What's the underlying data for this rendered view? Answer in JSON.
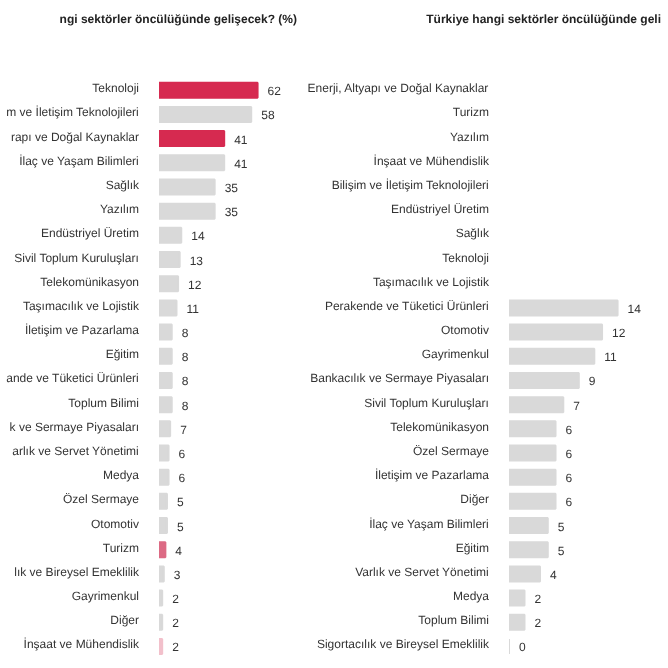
{
  "chart_data": [
    {
      "type": "bar",
      "orientation": "horizontal",
      "title": "ngi sektörler öncülüğünde gelişecek? (%)",
      "data_labels": true,
      "grid": false,
      "tick_labels": "y",
      "categories": [
        "Teknoloji",
        "m ve İletişim Teknolojileri",
        "rapı ve Doğal Kaynaklar",
        "İlaç ve Yaşam Bilimleri",
        "Sağlık",
        "Yazılım",
        "Endüstriyel Üretim",
        "Sivil Toplum Kuruluşları",
        "Telekomünikasyon",
        "Taşımacılık ve Lojistik",
        "İletişim ve Pazarlama",
        "Eğitim",
        "ande ve Tüketici Ürünleri",
        "Toplum Bilimi",
        "k ve Sermaye Piyasaları",
        "arlık ve Servet Yönetimi",
        "Medya",
        "Özel Sermaye",
        "Otomotiv",
        "Turizm",
        "lık ve Bireysel Emeklilik",
        "Gayrimenkul",
        "Diğer",
        "İnşaat ve Mühendislik"
      ],
      "values": [
        62,
        58,
        41,
        41,
        35,
        35,
        14,
        13,
        12,
        11,
        8,
        8,
        8,
        8,
        7,
        6,
        6,
        5,
        5,
        4,
        3,
        2,
        2,
        2
      ],
      "colors": [
        "#d62a50",
        "#d9d9d9",
        "#d62a50",
        "#d9d9d9",
        "#d9d9d9",
        "#d9d9d9",
        "#d9d9d9",
        "#d9d9d9",
        "#d9d9d9",
        "#d9d9d9",
        "#d9d9d9",
        "#d9d9d9",
        "#d9d9d9",
        "#d9d9d9",
        "#d9d9d9",
        "#d9d9d9",
        "#d9d9d9",
        "#d9d9d9",
        "#d9d9d9",
        "#dc6a84",
        "#d9d9d9",
        "#d9d9d9",
        "#d9d9d9",
        "#f2c0cb"
      ]
    },
    {
      "type": "bar",
      "orientation": "horizontal",
      "title": "Türkiye hangi sektörler öncülüğünde geli",
      "data_labels": true,
      "grid": false,
      "tick_labels": "y",
      "categories": [
        "Enerji, Altyapı ve Doğal Kaynaklar",
        "Turizm",
        "Yazılım",
        "İnşaat ve Mühendislik",
        "Bilişim ve İletişim Teknolojileri",
        "Endüstriyel Üretim",
        "Sağlık",
        "Teknoloji",
        "Taşımacılık ve Lojistik",
        "Perakende ve Tüketici Ürünleri",
        "Otomotiv",
        "Gayrimenkul",
        "Bankacılık ve Sermaye Piyasaları",
        "Sivil Toplum Kuruluşları",
        "Telekomünikasyon",
        "Özel Sermaye",
        "İletişim ve Pazarlama",
        "Diğer",
        "İlaç ve Yaşam Bilimleri",
        "Eğitim",
        "Varlık ve Servet Yönetimi",
        "Medya",
        "Toplum Bilimi",
        "Sigortacılık ve Bireysel Emeklilik"
      ],
      "values": [
        null,
        null,
        null,
        null,
        null,
        null,
        null,
        null,
        null,
        14,
        12,
        11,
        9,
        7,
        6,
        6,
        6,
        6,
        5,
        5,
        4,
        2,
        2,
        0
      ],
      "colors": [
        "#d62a50",
        "#dc6a84",
        "#d9d9d9",
        "#f2c0cb",
        "#d9d9d9",
        "#d9d9d9",
        "#d9d9d9",
        "#d62a50",
        "#d9d9d9",
        "#d9d9d9",
        "#d9d9d9",
        "#d9d9d9",
        "#d9d9d9",
        "#d9d9d9",
        "#d9d9d9",
        "#d9d9d9",
        "#d9d9d9",
        "#d9d9d9",
        "#d9d9d9",
        "#d9d9d9",
        "#d9d9d9",
        "#d9d9d9",
        "#d9d9d9",
        "#d9d9d9"
      ]
    }
  ]
}
